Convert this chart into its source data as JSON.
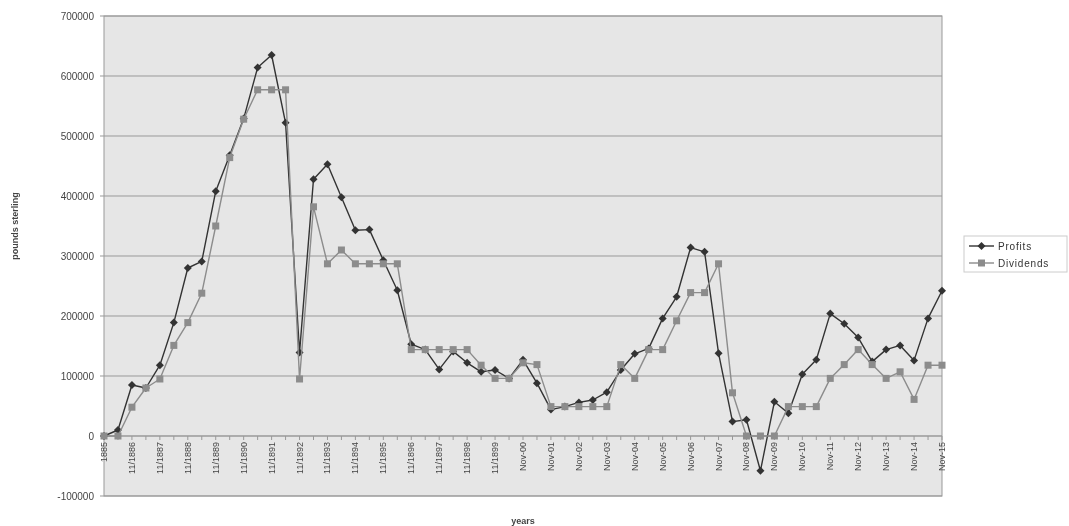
{
  "chart_data": {
    "type": "line",
    "xlabel": "years",
    "ylabel": "pounds sterling",
    "categories": [
      "1885",
      null,
      "11/1886",
      null,
      "11/1887",
      null,
      "11/1888",
      null,
      "11/1889",
      null,
      "11/1890",
      null,
      "11/1891",
      null,
      "11/1892",
      null,
      "11/1893",
      null,
      "11/1894",
      null,
      "11/1895",
      null,
      "11/1896",
      null,
      "11/1897",
      null,
      "11/1898",
      null,
      "11/1899",
      null,
      "Nov-00",
      null,
      "Nov-01",
      null,
      "Nov-02",
      null,
      "Nov-03",
      null,
      "Nov-04",
      null,
      "Nov-05",
      null,
      "Nov-06",
      null,
      "Nov-07",
      null,
      "Nov-08",
      null,
      "Nov-09",
      null,
      "Nov-10",
      null,
      "Nov-11",
      null,
      "Nov-12",
      null,
      "Nov-13",
      null,
      "Nov-14",
      null,
      "Nov-15"
    ],
    "series": [
      {
        "name": "Profits",
        "color": "#333333",
        "marker": "diamond",
        "values": [
          0,
          10000,
          85000,
          80000,
          118000,
          189000,
          280000,
          291000,
          408000,
          468000,
          529000,
          614000,
          635000,
          522000,
          139000,
          428000,
          453000,
          398000,
          343000,
          344000,
          293000,
          243000,
          153000,
          144000,
          111000,
          141000,
          122000,
          107000,
          110000,
          96000,
          127000,
          88000,
          44000,
          49000,
          56000,
          60000,
          73000,
          110000,
          137000,
          146000,
          196000,
          232000,
          314000,
          307000,
          138000,
          24000,
          27000,
          -58000,
          57000,
          38000,
          103000,
          127000,
          204000,
          187000,
          164000,
          124000,
          144000,
          151000,
          126000,
          196000,
          242000
        ]
      },
      {
        "name": "Dividends",
        "color": "#8c8c8c",
        "marker": "square",
        "values": [
          0,
          0,
          48000,
          80000,
          95000,
          151000,
          189000,
          238000,
          350000,
          464000,
          528000,
          577000,
          577000,
          577000,
          95000,
          382000,
          287000,
          310000,
          287000,
          287000,
          287000,
          287000,
          144000,
          144000,
          144000,
          144000,
          144000,
          118000,
          96000,
          96000,
          122000,
          119000,
          49000,
          49000,
          49000,
          49000,
          49000,
          119000,
          96000,
          144000,
          144000,
          192000,
          239000,
          239000,
          287000,
          72000,
          0,
          0,
          0,
          49000,
          49000,
          49000,
          96000,
          119000,
          144000,
          119000,
          96000,
          107000,
          61000,
          118000,
          118000
        ]
      }
    ],
    "ylim": [
      -100000,
      700000
    ],
    "yticks": [
      -100000,
      0,
      100000,
      200000,
      300000,
      400000,
      500000,
      600000,
      700000
    ],
    "grid": "y",
    "legend": "right"
  }
}
